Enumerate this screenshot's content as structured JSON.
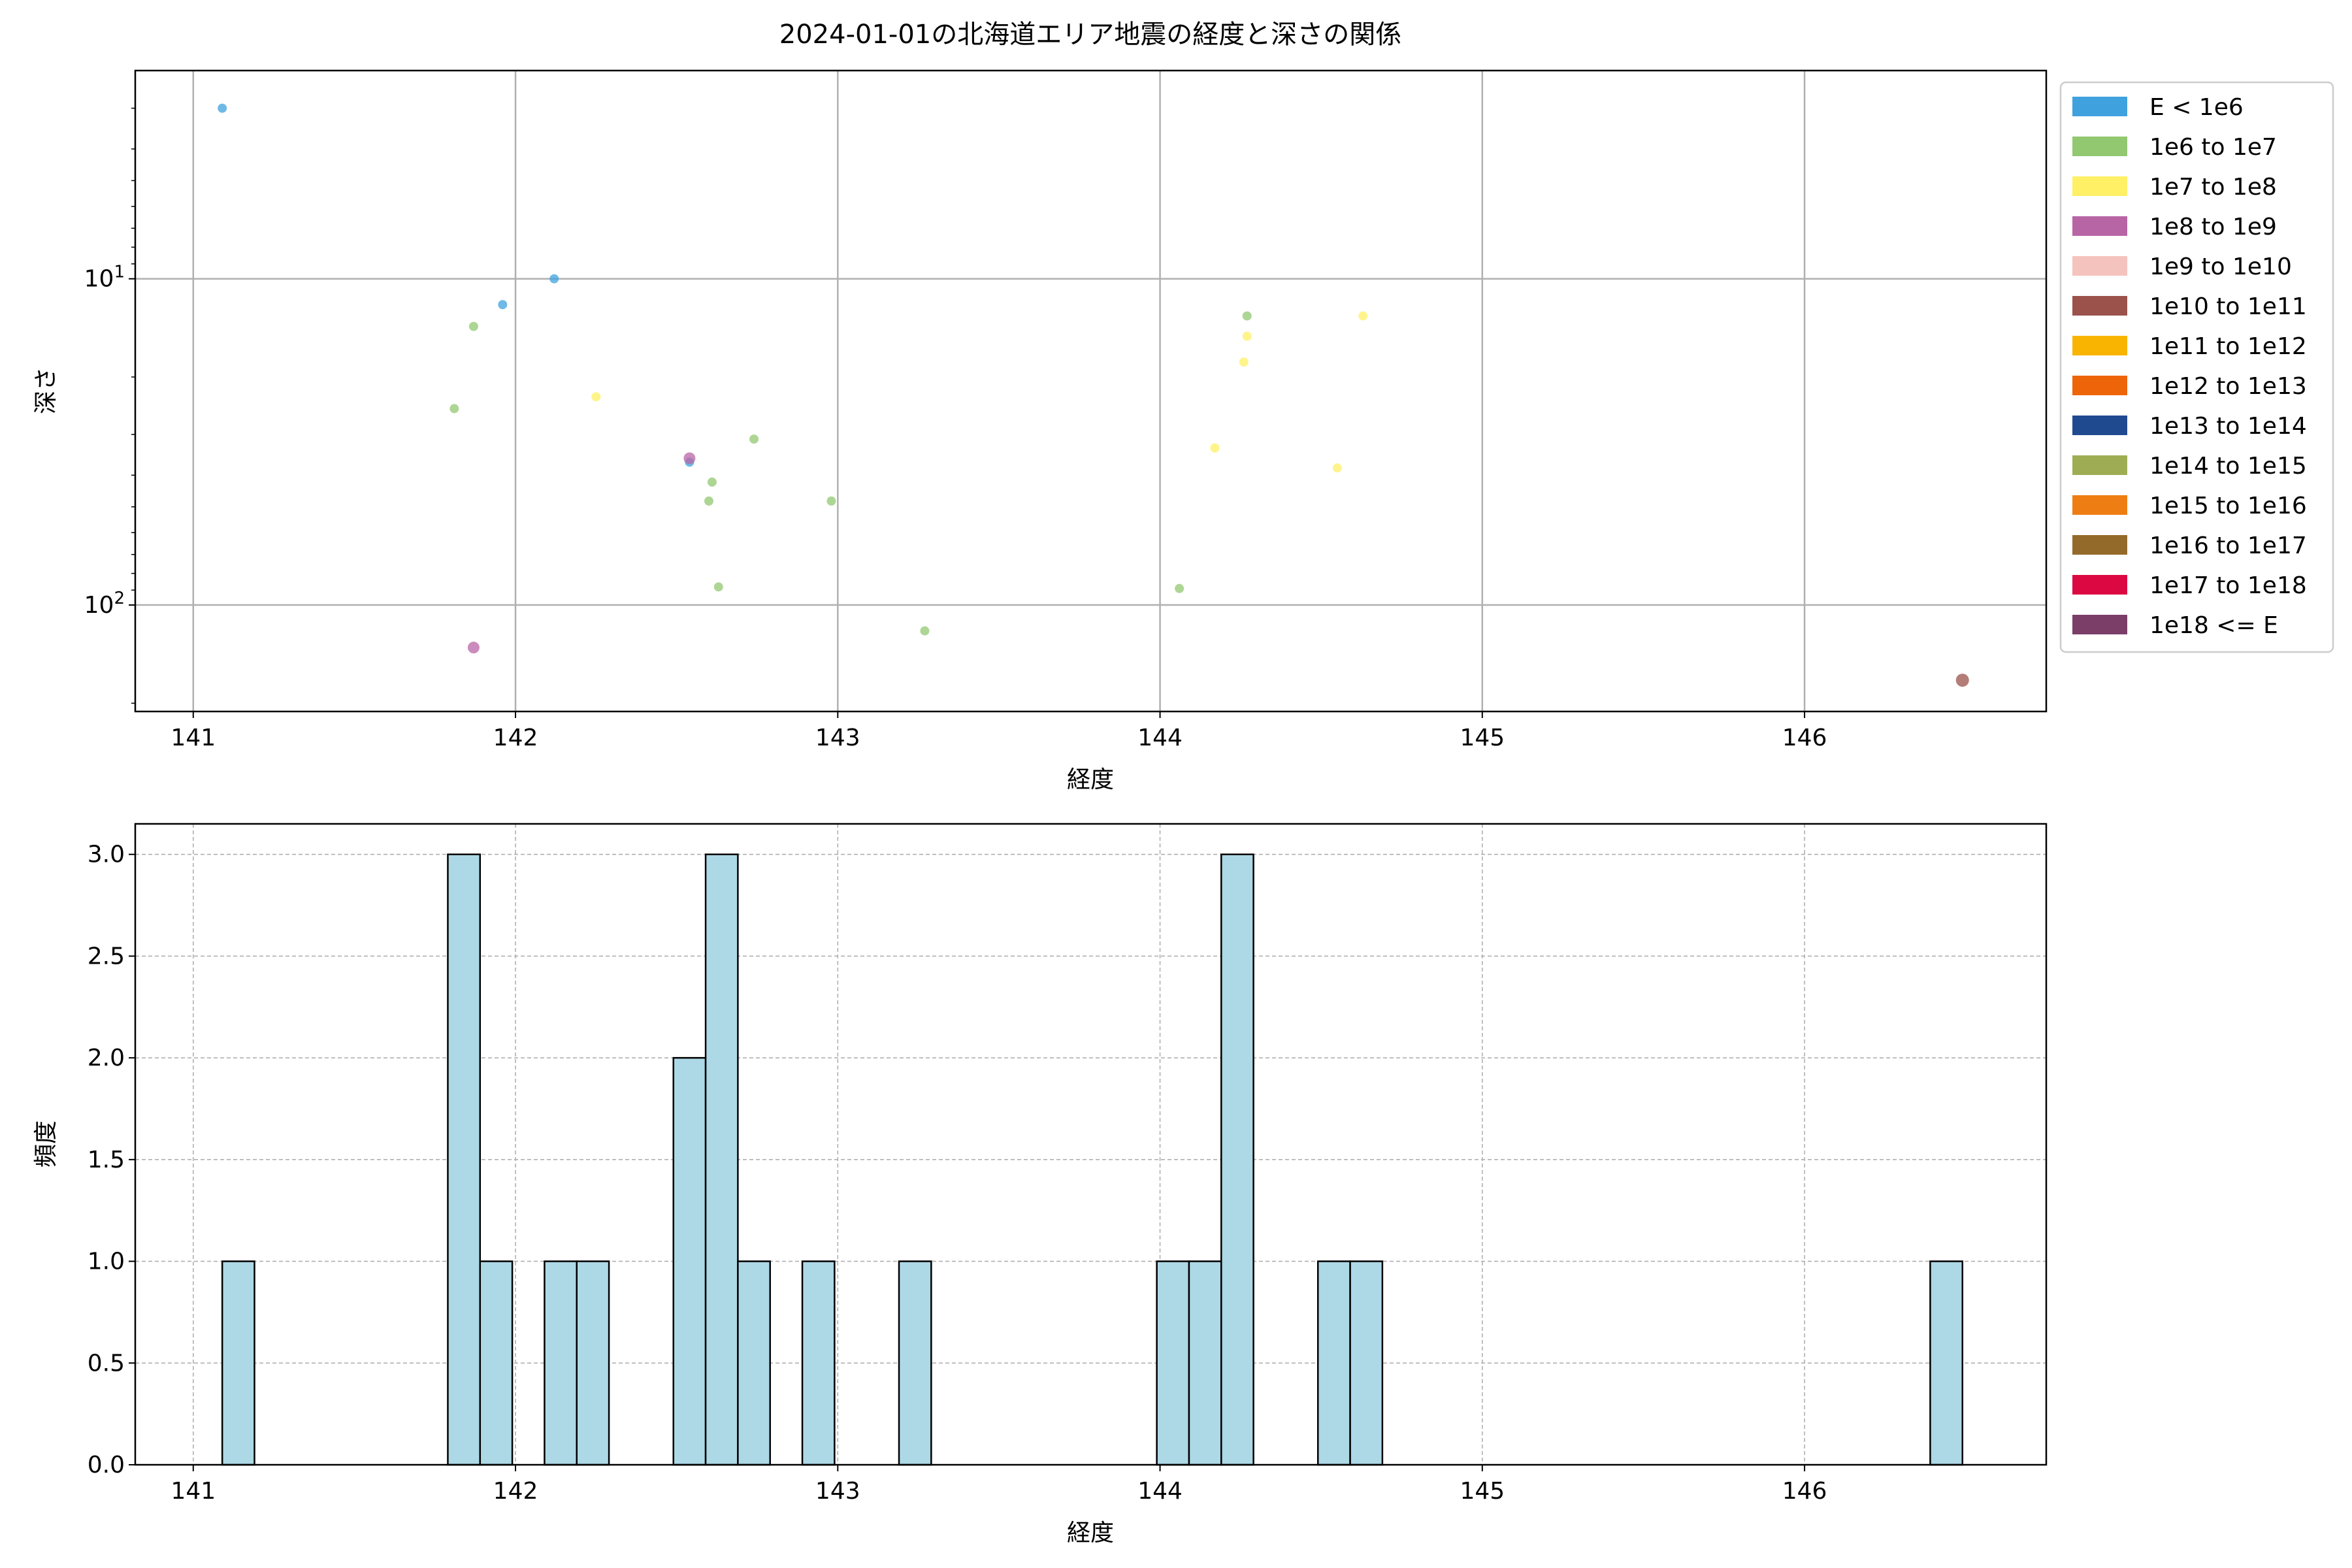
{
  "chart_data": [
    {
      "type": "scatter",
      "title": "2024-01-01の北海道エリア地震の経度と深さの関係",
      "xlabel": "経度",
      "ylabel": "深さ",
      "xlim": [
        140.82,
        146.75
      ],
      "ylim": [
        212,
        2.3
      ],
      "yscale": "log",
      "y_inverted": true,
      "xticks": [
        141,
        142,
        143,
        144,
        145,
        146
      ],
      "yticks": [
        {
          "value": 10,
          "label": "10^1"
        },
        {
          "value": 100,
          "label": "10^2"
        }
      ],
      "grid": true,
      "legend_position": "outside-right",
      "legend": [
        {
          "label": "E < 1e6",
          "color": "#3fa1dd"
        },
        {
          "label": "1e6 to 1e7",
          "color": "#91c870"
        },
        {
          "label": "1e7 to 1e8",
          "color": "#fff066"
        },
        {
          "label": "1e8 to 1e9",
          "color": "#b865a6"
        },
        {
          "label": "1e9 to 1e10",
          "color": "#f5c3bd"
        },
        {
          "label": "1e10 to 1e11",
          "color": "#9a524b"
        },
        {
          "label": "1e11 to 1e12",
          "color": "#f8b400"
        },
        {
          "label": "1e12 to 1e13",
          "color": "#ee6509"
        },
        {
          "label": "1e13 to 1e14",
          "color": "#1f4a8f"
        },
        {
          "label": "1e14 to 1e15",
          "color": "#9ead53"
        },
        {
          "label": "1e15 to 1e16",
          "color": "#ee7e13"
        },
        {
          "label": "1e16 to 1e17",
          "color": "#946a2a"
        },
        {
          "label": "1e17 to 1e18",
          "color": "#dc0842"
        },
        {
          "label": "1e18 <= E",
          "color": "#7a3e69"
        }
      ],
      "points": [
        {
          "x": 141.09,
          "y": 3.0,
          "c": 0
        },
        {
          "x": 141.96,
          "y": 12.0,
          "c": 0
        },
        {
          "x": 142.12,
          "y": 10.0,
          "c": 0
        },
        {
          "x": 142.54,
          "y": 36.5,
          "c": 0
        },
        {
          "x": 141.87,
          "y": 14.0,
          "c": 1
        },
        {
          "x": 141.81,
          "y": 25.0,
          "c": 1
        },
        {
          "x": 142.74,
          "y": 31.0,
          "c": 1
        },
        {
          "x": 142.61,
          "y": 42.0,
          "c": 1
        },
        {
          "x": 142.6,
          "y": 48.0,
          "c": 1
        },
        {
          "x": 142.98,
          "y": 48.0,
          "c": 1
        },
        {
          "x": 142.63,
          "y": 88.0,
          "c": 1
        },
        {
          "x": 143.27,
          "y": 120.0,
          "c": 1
        },
        {
          "x": 144.27,
          "y": 13.0,
          "c": 1
        },
        {
          "x": 144.06,
          "y": 89.0,
          "c": 1
        },
        {
          "x": 142.25,
          "y": 23.0,
          "c": 2
        },
        {
          "x": 144.27,
          "y": 15.0,
          "c": 2
        },
        {
          "x": 144.26,
          "y": 18.0,
          "c": 2
        },
        {
          "x": 144.63,
          "y": 13.0,
          "c": 2
        },
        {
          "x": 144.17,
          "y": 33.0,
          "c": 2
        },
        {
          "x": 144.55,
          "y": 38.0,
          "c": 2
        },
        {
          "x": 142.54,
          "y": 35.5,
          "c": 3
        },
        {
          "x": 141.87,
          "y": 135.0,
          "c": 3
        },
        {
          "x": 146.49,
          "y": 170.0,
          "c": 5
        }
      ]
    },
    {
      "type": "bar",
      "subtype": "histogram",
      "xlabel": "経度",
      "ylabel": "頻度",
      "xlim": [
        140.82,
        146.75
      ],
      "ylim": [
        0,
        3.15
      ],
      "xticks": [
        141,
        142,
        143,
        144,
        145,
        146
      ],
      "yticks": [
        "0.0",
        "0.5",
        "1.0",
        "1.5",
        "2.0",
        "2.5",
        "3.0"
      ],
      "grid": true,
      "bar_color": "#add8e6",
      "edge_color": "#000000",
      "bins": [
        {
          "x0": 141.09,
          "x1": 141.19,
          "value": 1
        },
        {
          "x0": 141.79,
          "x1": 141.89,
          "value": 3
        },
        {
          "x0": 141.89,
          "x1": 141.99,
          "value": 1
        },
        {
          "x0": 142.09,
          "x1": 142.19,
          "value": 1
        },
        {
          "x0": 142.19,
          "x1": 142.29,
          "value": 1
        },
        {
          "x0": 142.49,
          "x1": 142.59,
          "value": 2
        },
        {
          "x0": 142.59,
          "x1": 142.69,
          "value": 3
        },
        {
          "x0": 142.69,
          "x1": 142.79,
          "value": 1
        },
        {
          "x0": 142.89,
          "x1": 142.99,
          "value": 1
        },
        {
          "x0": 143.19,
          "x1": 143.29,
          "value": 1
        },
        {
          "x0": 143.99,
          "x1": 144.09,
          "value": 1
        },
        {
          "x0": 144.09,
          "x1": 144.19,
          "value": 1
        },
        {
          "x0": 144.19,
          "x1": 144.29,
          "value": 3
        },
        {
          "x0": 144.49,
          "x1": 144.59,
          "value": 1
        },
        {
          "x0": 144.59,
          "x1": 144.69,
          "value": 1
        },
        {
          "x0": 146.39,
          "x1": 146.49,
          "value": 1
        }
      ]
    }
  ]
}
